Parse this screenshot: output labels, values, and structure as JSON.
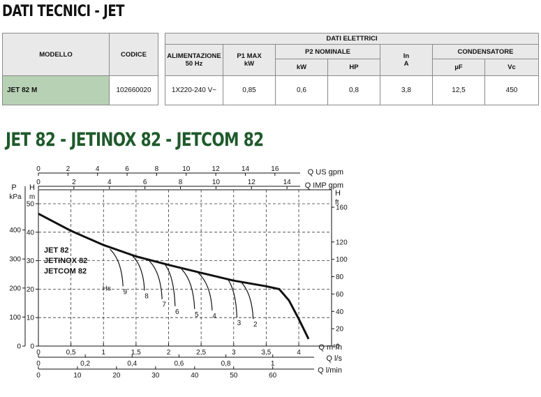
{
  "header": {
    "title": "DATI TECNICI - JET",
    "subtitle": "JET 82 - JETINOX 82 - JETCOM 82"
  },
  "model_table": {
    "col_model": "MODELLO",
    "col_code": "CODICE",
    "model": "JET 82 M",
    "code": "102660020"
  },
  "electrical_table": {
    "group_title": "DATI ELETTRICI",
    "col_supply": "ALIMENTAZIONE",
    "col_supply_freq": "50 Hz",
    "col_p1": "P1 MAX",
    "col_p1_unit": "kW",
    "col_p2": "P2 NOMINALE",
    "col_p2_kw": "kW",
    "col_p2_hp": "HP",
    "col_in": "In",
    "col_in_unit": "A",
    "col_cond": "CONDENSATORE",
    "col_cond_uf": "µF",
    "col_cond_vc": "Vc",
    "row": {
      "supply": "1X220-240 V~",
      "p1": "0,85",
      "p2_kw": "0,6",
      "p2_hp": "0,8",
      "in": "3,8",
      "cond_uf": "12,5",
      "cond_vc": "450"
    }
  },
  "chart_data": {
    "type": "line",
    "series_labels": [
      "JET 82",
      "JETINOX 82",
      "JETCOM 82"
    ],
    "axes": {
      "left_p_label": "P",
      "left_p_unit": "kPa",
      "left_h_label": "H",
      "left_h_unit": "m",
      "right_h_label": "H",
      "right_h_unit": "ft",
      "top1_label": "Q US gpm",
      "top2_label": "Q IMP gpm",
      "bottom1_label": "Q m³/h",
      "bottom2_label": "Q l/s",
      "bottom3_label": "Q l/min",
      "kpa_ticks": [
        "0",
        "100",
        "200",
        "300",
        "400"
      ],
      "m_ticks": [
        "0",
        "10",
        "20",
        "30",
        "40",
        "50"
      ],
      "ft_ticks": [
        "0",
        "20",
        "40",
        "60",
        "80",
        "100",
        "120",
        "160"
      ],
      "us_gpm_ticks": [
        "0",
        "2",
        "4",
        "6",
        "8",
        "10",
        "12",
        "14",
        "16"
      ],
      "imp_gpm_ticks": [
        "0",
        "2",
        "4",
        "6",
        "8",
        "10",
        "12",
        "14"
      ],
      "m3h_ticks": [
        "0",
        "0,5",
        "1",
        "1,5",
        "2",
        "2,5",
        "3",
        "3,5",
        "4"
      ],
      "ls_ticks": [
        "0",
        "0,2",
        "0,4",
        "0,6",
        "0,8",
        "1"
      ],
      "lmin_ticks": [
        "0",
        "10",
        "20",
        "30",
        "40",
        "50",
        "60"
      ],
      "xlim_m3h": [
        0,
        4.5
      ],
      "ylim_m": [
        0,
        52
      ]
    },
    "main_curve": {
      "x": [
        0,
        0.5,
        1.0,
        1.5,
        2.0,
        2.5,
        3.0,
        3.5,
        3.7,
        3.85,
        4.0,
        4.15
      ],
      "y": [
        46.5,
        40.5,
        35.5,
        31.5,
        28.5,
        25.7,
        23.0,
        21.0,
        20.0,
        16.0,
        9.5,
        2.5
      ]
    },
    "suction_label": "Hs",
    "suction_curves": [
      {
        "label": "9",
        "start": [
          1.1,
          34.0
        ],
        "end": [
          1.3,
          21.0
        ]
      },
      {
        "label": "8",
        "start": [
          1.45,
          31.5
        ],
        "end": [
          1.63,
          19.5
        ]
      },
      {
        "label": "7",
        "start": [
          1.7,
          30.0
        ],
        "end": [
          1.9,
          16.5
        ]
      },
      {
        "label": "6",
        "start": [
          1.95,
          28.5
        ],
        "end": [
          2.1,
          14.0
        ]
      },
      {
        "label": "5",
        "start": [
          2.2,
          27.0
        ],
        "end": [
          2.4,
          13.0
        ]
      },
      {
        "label": "4",
        "start": [
          2.45,
          25.8
        ],
        "end": [
          2.67,
          12.5
        ]
      },
      {
        "label": "3",
        "start": [
          2.9,
          23.8
        ],
        "end": [
          3.05,
          10.0
        ]
      },
      {
        "label": "2",
        "start": [
          3.1,
          22.8
        ],
        "end": [
          3.3,
          9.5
        ]
      }
    ]
  }
}
